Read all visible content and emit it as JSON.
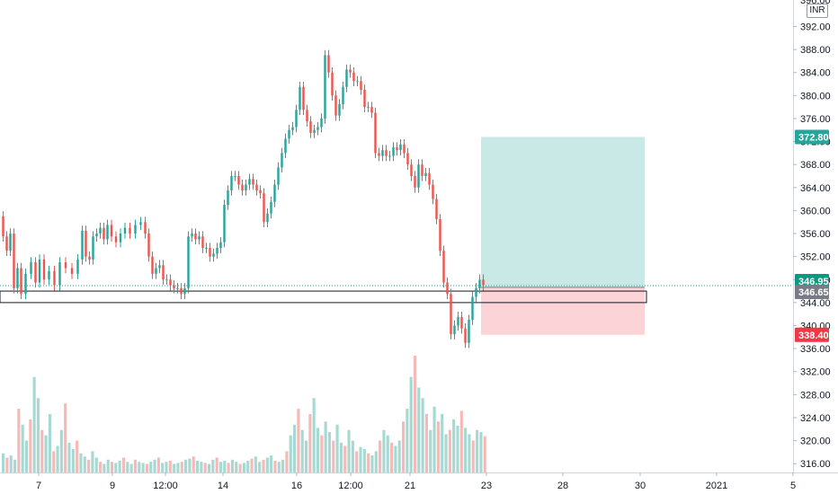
{
  "chart_data": {
    "type": "candlestick",
    "currency": "INR",
    "price_axis": {
      "ticks": [
        "392.00",
        "388.00",
        "384.00",
        "380.00",
        "376.00",
        "372.00",
        "368.00",
        "364.00",
        "360.00",
        "356.00",
        "352.00",
        "348.00",
        "344.00",
        "340.00",
        "336.00",
        "332.00",
        "328.00",
        "324.00",
        "320.00",
        "316.00"
      ],
      "tick_values": [
        392,
        388,
        384,
        380,
        376,
        372,
        368,
        364,
        360,
        356,
        352,
        348,
        344,
        340,
        336,
        332,
        328,
        324,
        320,
        316
      ],
      "top_partial_label": "396.00"
    },
    "price_labels": [
      {
        "label": "372.80",
        "value": 372.8,
        "color": "#26a69a"
      },
      {
        "label": "346.95",
        "value": 346.95,
        "color": "#089981"
      },
      {
        "label": "346.65",
        "value": 346.65,
        "color": "#787b86"
      },
      {
        "label": "338.40",
        "value": 338.4,
        "color": "#f23645"
      }
    ],
    "time_axis": {
      "labels": [
        "7",
        "9",
        "12:00",
        "14",
        "16",
        "12:00",
        "21",
        "23",
        "28",
        "30",
        "2021",
        "5"
      ]
    },
    "price_series": [
      [
        0,
        359.0
      ],
      [
        4,
        355.5
      ],
      [
        8,
        353.0
      ],
      [
        12,
        356.0
      ],
      [
        16,
        346.5
      ],
      [
        20,
        350.0
      ],
      [
        24,
        345.5
      ],
      [
        30,
        349.0
      ],
      [
        36,
        351.0
      ],
      [
        40,
        347.5
      ],
      [
        45,
        351.5
      ],
      [
        50,
        348.0
      ],
      [
        56,
        349.5
      ],
      [
        62,
        347.0
      ],
      [
        68,
        351.0
      ],
      [
        75,
        350.0
      ],
      [
        82,
        349.0
      ],
      [
        88,
        351.5
      ],
      [
        92,
        356.5
      ],
      [
        96,
        352.0
      ],
      [
        100,
        351.5
      ],
      [
        104,
        355.5
      ],
      [
        108,
        356.0
      ],
      [
        112,
        357.0
      ],
      [
        116,
        355.0
      ],
      [
        120,
        357.5
      ],
      [
        125,
        355.5
      ],
      [
        130,
        354.5
      ],
      [
        135,
        356.0
      ],
      [
        140,
        357.0
      ],
      [
        146,
        356.0
      ],
      [
        152,
        357.5
      ],
      [
        158,
        358.0
      ],
      [
        162,
        356.0
      ],
      [
        166,
        352.0
      ],
      [
        170,
        349.0
      ],
      [
        174,
        350.0
      ],
      [
        178,
        350.5
      ],
      [
        182,
        348.0
      ],
      [
        186,
        348.0
      ],
      [
        190,
        347.0
      ],
      [
        194,
        346.5
      ],
      [
        198,
        346.5
      ],
      [
        202,
        345.5
      ],
      [
        206,
        346.5
      ],
      [
        210,
        355.5
      ],
      [
        214,
        356.0
      ],
      [
        218,
        355.0
      ],
      [
        222,
        355.5
      ],
      [
        226,
        353.5
      ],
      [
        230,
        353.5
      ],
      [
        234,
        352.0
      ],
      [
        238,
        352.5
      ],
      [
        242,
        353.5
      ],
      [
        246,
        354.5
      ],
      [
        250,
        361.0
      ],
      [
        254,
        363.5
      ],
      [
        258,
        366.0
      ],
      [
        262,
        366.0
      ],
      [
        266,
        364.5
      ],
      [
        270,
        363.5
      ],
      [
        274,
        364.5
      ],
      [
        278,
        365.5
      ],
      [
        282,
        364.5
      ],
      [
        286,
        363.5
      ],
      [
        290,
        363.0
      ],
      [
        294,
        358.0
      ],
      [
        298,
        359.5
      ],
      [
        302,
        361.5
      ],
      [
        306,
        364.5
      ],
      [
        310,
        367.5
      ],
      [
        314,
        370.0
      ],
      [
        318,
        372.5
      ],
      [
        322,
        374.0
      ],
      [
        326,
        374.5
      ],
      [
        330,
        377.5
      ],
      [
        334,
        381.5
      ],
      [
        338,
        377.5
      ],
      [
        342,
        375.5
      ],
      [
        346,
        373.5
      ],
      [
        350,
        374.0
      ],
      [
        354,
        374.5
      ],
      [
        358,
        376.0
      ],
      [
        362,
        387.0
      ],
      [
        366,
        384.0
      ],
      [
        370,
        380.0
      ],
      [
        374,
        376.5
      ],
      [
        378,
        378.5
      ],
      [
        382,
        381.5
      ],
      [
        386,
        384.5
      ],
      [
        390,
        384.0
      ],
      [
        394,
        382.5
      ],
      [
        398,
        382.5
      ],
      [
        402,
        381.0
      ],
      [
        406,
        378.0
      ],
      [
        410,
        378.0
      ],
      [
        414,
        377.0
      ],
      [
        418,
        370.0
      ],
      [
        422,
        369.5
      ],
      [
        426,
        370.5
      ],
      [
        430,
        369.5
      ],
      [
        434,
        369.5
      ],
      [
        438,
        371.0
      ],
      [
        442,
        370.5
      ],
      [
        446,
        371.5
      ],
      [
        450,
        370.0
      ],
      [
        454,
        368.0
      ],
      [
        458,
        366.0
      ],
      [
        462,
        364.0
      ],
      [
        466,
        368.0
      ],
      [
        470,
        366.0
      ],
      [
        474,
        366.5
      ],
      [
        478,
        364.5
      ],
      [
        482,
        362.0
      ],
      [
        486,
        358.5
      ],
      [
        490,
        353.0
      ],
      [
        494,
        347.5
      ],
      [
        498,
        345.5
      ],
      [
        502,
        338.5
      ],
      [
        506,
        340.0
      ],
      [
        510,
        341.5
      ],
      [
        514,
        339.5
      ],
      [
        518,
        337.0
      ],
      [
        522,
        341.0
      ],
      [
        526,
        345.0
      ],
      [
        530,
        346.5
      ],
      [
        534,
        348.0
      ],
      [
        538,
        347.0
      ]
    ],
    "volume_series": [
      18,
      14,
      16,
      12,
      60,
      45,
      30,
      50,
      90,
      70,
      40,
      35,
      55,
      20,
      25,
      40,
      65,
      28,
      22,
      30,
      18,
      15,
      12,
      20,
      14,
      10,
      8,
      12,
      10,
      9,
      11,
      14,
      10,
      8,
      12,
      10,
      9,
      8,
      10,
      12,
      14,
      9,
      10,
      11,
      8,
      9,
      10,
      12,
      13,
      15,
      11,
      10,
      9,
      8,
      12,
      14,
      10,
      11,
      9,
      12,
      10,
      8,
      9,
      11,
      13,
      15,
      10,
      12,
      14,
      16,
      11,
      10,
      12,
      20,
      35,
      45,
      60,
      40,
      30,
      55,
      70,
      42,
      35,
      48,
      38,
      30,
      45,
      28,
      25,
      40,
      30,
      20,
      24,
      22,
      18,
      16,
      20,
      30,
      40,
      35,
      28,
      25,
      30,
      48,
      60,
      90,
      110,
      80,
      70,
      55,
      40,
      62,
      48,
      55,
      36,
      40,
      50,
      44,
      58,
      42,
      36,
      30,
      40,
      38,
      34
    ],
    "position": {
      "entry": 346.65,
      "target": 372.8,
      "stop": 338.4,
      "target_zone_color": "#26a69a",
      "stop_zone_color": "#f23645"
    },
    "support_zone": {
      "low": 344.0,
      "high": 346.0
    },
    "colors": {
      "up": "#26a69a",
      "down": "#ef5350",
      "up_volume": "#a5d9d2",
      "down_volume": "#f7b9b7"
    }
  }
}
